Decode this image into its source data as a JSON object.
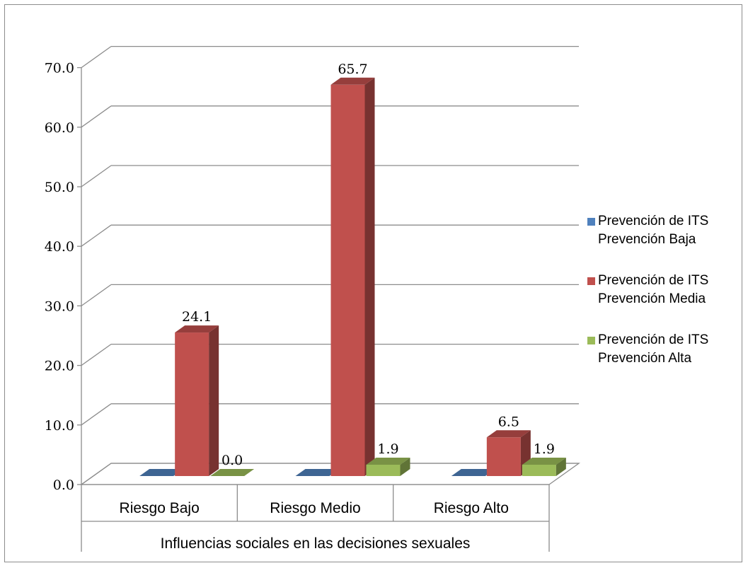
{
  "chart_data": {
    "type": "bar",
    "categories": [
      "Riesgo Bajo",
      "Riesgo Medio",
      "Riesgo Alto"
    ],
    "xlabel": "Influencias sociales en las decisiones sexuales",
    "ylim": [
      0,
      70
    ],
    "yticks": [
      "0.0",
      "10.0",
      "20.0",
      "30.0",
      "40.0",
      "50.0",
      "60.0",
      "70.0"
    ],
    "grid": true,
    "legend_position": "right",
    "series": [
      {
        "name_lines": [
          "Prevención de ITS",
          "Prevención Baja"
        ],
        "color": "#4f81bd",
        "values": [
          0,
          0,
          0
        ],
        "labels": [
          "",
          "",
          ""
        ]
      },
      {
        "name_lines": [
          "Prevención de ITS",
          "Prevención Media"
        ],
        "color": "#c0504d",
        "values": [
          24.1,
          65.7,
          6.5
        ],
        "labels": [
          "24.1",
          "65.7",
          "6.5"
        ]
      },
      {
        "name_lines": [
          "Prevención de ITS",
          "Prevención Alta"
        ],
        "color": "#9bbb59",
        "values": [
          0.0,
          1.9,
          1.9
        ],
        "labels": [
          "0.0",
          "1.9",
          "1.9"
        ]
      }
    ]
  }
}
